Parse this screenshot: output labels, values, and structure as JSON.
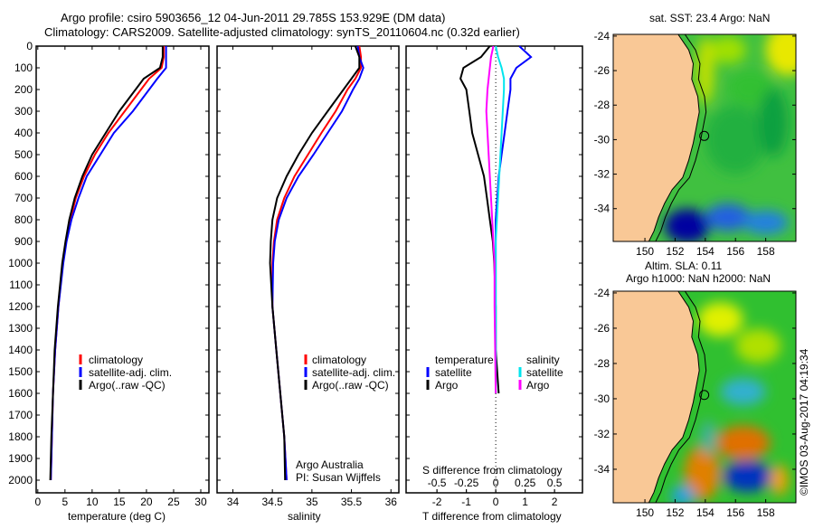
{
  "header": {
    "title_line1": "Argo profile: csiro 5903656_12 04-Jun-2011 29.785S 153.929E (DM data)",
    "title_line2": "Climatology: CARS2009. Satellite-adjusted climatology: synTS_20110604.nc (0.32d earlier)"
  },
  "colors": {
    "climatology": "#ff0000",
    "satellite": "#0000ff",
    "argo": "#000000",
    "sal_satellite": "#00e5ee",
    "sal_argo": "#ff00ff",
    "land": "#f9c896"
  },
  "chart_data": [
    {
      "type": "line",
      "name": "temperature-profile",
      "xlabel": "temperature (deg C)",
      "ylabel": "",
      "xlim": [
        -0.3,
        31.5
      ],
      "ylim": [
        2125,
        0
      ],
      "xticks": [
        0,
        5,
        10,
        15,
        20,
        25,
        30
      ],
      "yticks": [
        0,
        100,
        200,
        300,
        400,
        500,
        600,
        700,
        800,
        900,
        1000,
        1100,
        1200,
        1300,
        1400,
        1500,
        1600,
        1700,
        1800,
        1900,
        2000
      ],
      "depth": [
        0,
        50,
        100,
        150,
        200,
        300,
        400,
        500,
        600,
        700,
        800,
        900,
        1000,
        1200,
        1400,
        1600,
        1800,
        2000
      ],
      "series": [
        {
          "name": "climatology",
          "color": "#ff0000",
          "values": [
            23.2,
            23.2,
            22.8,
            20.5,
            19,
            16,
            13,
            10.5,
            8.5,
            7,
            6,
            5.2,
            4.6,
            3.8,
            3.2,
            2.8,
            2.6,
            2.4
          ]
        },
        {
          "name": "satellite-adj. clim.",
          "color": "#0000ff",
          "values": [
            23.6,
            23.6,
            23.6,
            22,
            20.5,
            17.5,
            14,
            11.5,
            9,
            7.5,
            6.2,
            5.3,
            4.7,
            3.8,
            3.2,
            2.8,
            2.6,
            2.4
          ]
        },
        {
          "name": "Argo(..raw -QC)",
          "color": "#000000",
          "values": [
            23,
            23,
            22.5,
            19.5,
            18,
            15,
            12.5,
            10,
            8.2,
            6.8,
            5.8,
            5.1,
            4.5,
            3.7,
            3.1,
            2.8,
            2.5,
            2.3
          ]
        }
      ],
      "legend": [
        "climatology",
        "satellite-adj. clim.",
        "Argo(..raw -QC)"
      ]
    },
    {
      "type": "line",
      "name": "salinity-profile",
      "xlabel": "salinity",
      "xlim": [
        33.8,
        36.1
      ],
      "ylim": [
        2125,
        0
      ],
      "xticks": [
        34,
        34.5,
        35,
        35.5,
        36
      ],
      "depth": [
        0,
        50,
        100,
        150,
        200,
        300,
        400,
        500,
        600,
        700,
        800,
        900,
        1000,
        1200,
        1400,
        1600,
        1800,
        2000
      ],
      "series": [
        {
          "name": "climatology",
          "color": "#ff0000",
          "values": [
            35.6,
            35.62,
            35.62,
            35.55,
            35.45,
            35.3,
            35.12,
            34.95,
            34.78,
            34.65,
            34.56,
            34.52,
            34.5,
            34.5,
            34.55,
            34.6,
            34.65,
            34.68
          ]
        },
        {
          "name": "satellite-adj. clim.",
          "color": "#0000ff",
          "values": [
            35.58,
            35.6,
            35.65,
            35.6,
            35.52,
            35.38,
            35.2,
            35.02,
            34.83,
            34.68,
            34.58,
            34.53,
            34.51,
            34.5,
            34.55,
            34.6,
            34.65,
            34.68
          ]
        },
        {
          "name": "Argo(..raw -QC)",
          "color": "#000000",
          "values": [
            35.55,
            35.6,
            35.6,
            35.5,
            35.4,
            35.2,
            35.0,
            34.83,
            34.68,
            34.56,
            34.5,
            34.48,
            34.47,
            34.5,
            34.55,
            34.6,
            34.65,
            34.66
          ]
        }
      ],
      "legend": [
        "climatology",
        "satellite-adj. clim.",
        "Argo(..raw -QC)"
      ],
      "annotation": [
        "Argo Australia",
        "PI: Susan Wijffels"
      ]
    },
    {
      "type": "line",
      "name": "difference-profile",
      "xlabel": "T difference from climatology",
      "x2label": "S difference from climatology",
      "xlim": [
        -3.05,
        2.95
      ],
      "x2lim": [
        -0.5,
        0.5
      ],
      "ylim": [
        2125,
        0
      ],
      "xticks": [
        -2,
        -1,
        0,
        1,
        2
      ],
      "x2ticks": [
        "-0.5",
        "-0.25",
        "0",
        "0.25",
        "0.5"
      ],
      "depth": [
        0,
        50,
        100,
        150,
        200,
        300,
        400,
        500,
        600,
        700,
        800,
        900,
        1000,
        1200,
        1400,
        1600
      ],
      "series": [
        {
          "name": "temperature satellite",
          "axis": "T",
          "color": "#0000ff",
          "values": [
            0.8,
            1.2,
            0.7,
            0.5,
            0.5,
            0.4,
            0.3,
            0.2,
            0.1,
            0.05,
            0,
            0,
            0,
            0,
            0,
            0
          ]
        },
        {
          "name": "temperature Argo",
          "axis": "T",
          "color": "#000000",
          "values": [
            -0.2,
            -0.5,
            -1.1,
            -1.2,
            -1.0,
            -0.9,
            -0.8,
            -0.6,
            -0.4,
            -0.3,
            -0.2,
            -0.1,
            -0.05,
            0,
            0,
            0.1
          ]
        },
        {
          "name": "salinity satellite",
          "axis": "S",
          "color": "#00e5ee",
          "values": [
            0,
            0.02,
            0.05,
            0.07,
            0.07,
            0.06,
            0.05,
            0.04,
            0.03,
            0.02,
            0.01,
            0,
            0,
            0,
            0,
            0
          ]
        },
        {
          "name": "salinity Argo",
          "axis": "S",
          "color": "#ff00ff",
          "values": [
            -0.02,
            -0.04,
            -0.05,
            -0.06,
            -0.07,
            -0.08,
            -0.07,
            -0.06,
            -0.05,
            -0.04,
            -0.03,
            -0.02,
            -0.01,
            -0.01,
            -0.005,
            0
          ]
        }
      ],
      "legend": {
        "temperature_heading": "temperature",
        "salinity_heading": "salinity",
        "satellite": "satellite",
        "argo": "Argo"
      }
    },
    {
      "type": "heatmap",
      "name": "sst-map",
      "title": "sat. SST: 23.4 Argo: NaN",
      "xlim": [
        147.9,
        160
      ],
      "ylim": [
        -35.9,
        -23.9
      ],
      "xticks": [
        150,
        152,
        154,
        156,
        158
      ],
      "yticks": [
        -24,
        -26,
        -28,
        -30,
        -32,
        -34
      ],
      "argo_position": [
        153.929,
        -29.785
      ]
    },
    {
      "type": "heatmap",
      "name": "sla-map",
      "title_line1": "Altim. SLA: 0.11",
      "title_line2": "Argo h1000: NaN h2000: NaN",
      "xlim": [
        147.9,
        160
      ],
      "ylim": [
        -35.9,
        -23.9
      ],
      "xticks": [
        150,
        152,
        154,
        156,
        158
      ],
      "yticks": [
        -24,
        -26,
        -28,
        -30,
        -32,
        -34
      ],
      "argo_position": [
        153.929,
        -29.785
      ]
    }
  ],
  "footer": {
    "credit": "©IMOS 03-Aug-2017 04:19:34"
  }
}
